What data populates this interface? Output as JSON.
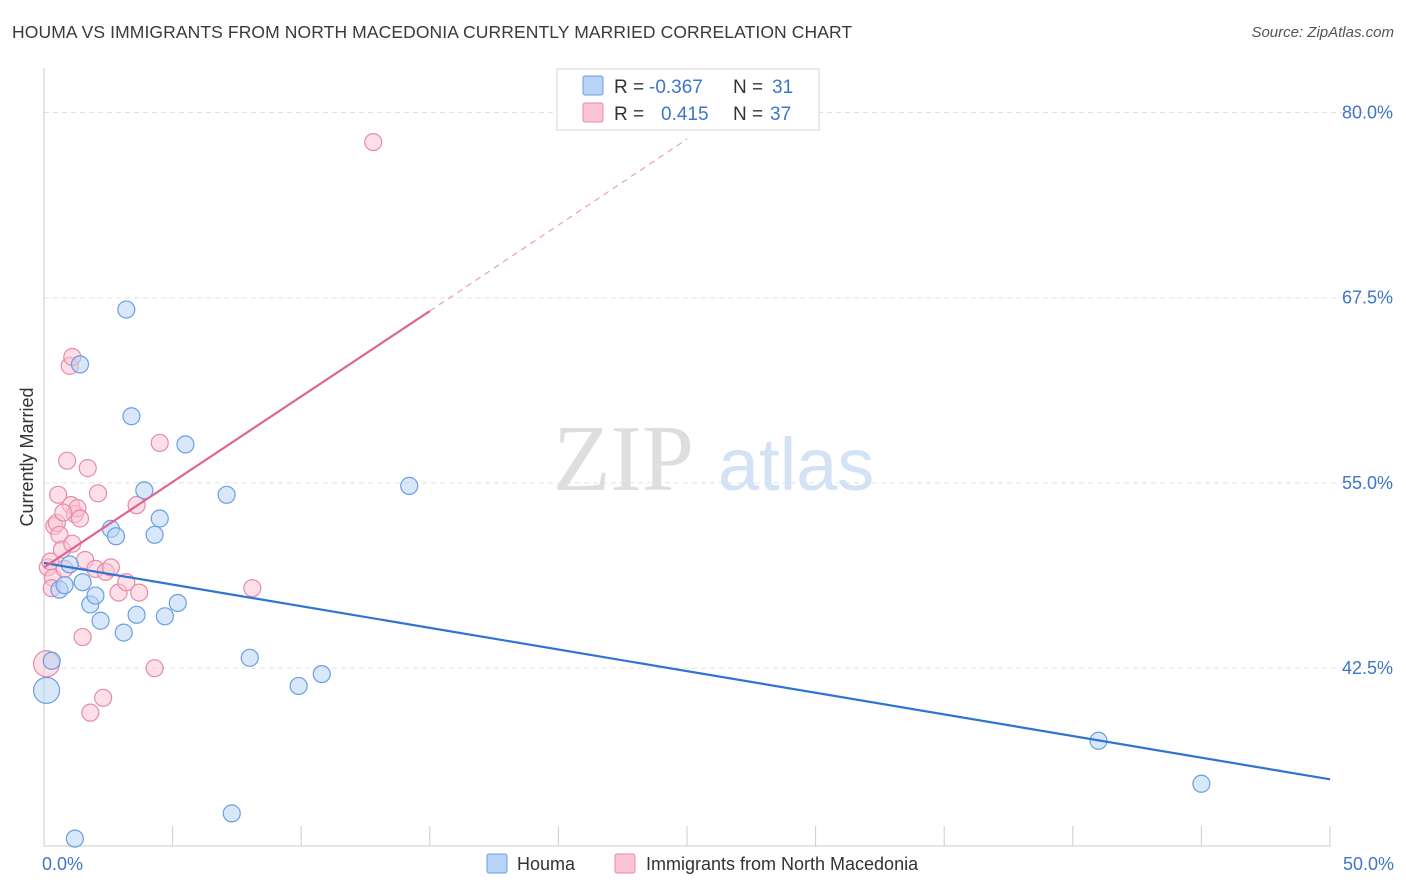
{
  "title": "HOUMA VS IMMIGRANTS FROM NORTH MACEDONIA CURRENTLY MARRIED CORRELATION CHART",
  "source": "Source: ZipAtlas.com",
  "watermark": {
    "zip": "ZIP",
    "atlas": "atlas"
  },
  "colors": {
    "blue_fill": "#b8d3f5",
    "blue_stroke": "#6a9fe0",
    "blue_line": "#2f74d0",
    "pink_fill": "#f9c4d4",
    "pink_stroke": "#e88aaa",
    "pink_line": "#e0648e",
    "axis_text": "#3d76c9",
    "grid": "#e2e2e2"
  },
  "chart_data": {
    "type": "scatter",
    "xlabel": "",
    "ylabel": "Currently Married",
    "xlim": [
      0,
      50
    ],
    "ylim": [
      30.5,
      83
    ],
    "x_tick_labels": [
      {
        "value": 0,
        "label": "0.0%"
      },
      {
        "value": 50,
        "label": "50.0%"
      }
    ],
    "x_minor_ticks": [
      0,
      5,
      10,
      15,
      20,
      25,
      30,
      35,
      40,
      45,
      50
    ],
    "y_ticks": [
      {
        "value": 42.5,
        "label": "42.5%"
      },
      {
        "value": 55.0,
        "label": "55.0%"
      },
      {
        "value": 67.5,
        "label": "67.5%"
      },
      {
        "value": 80.0,
        "label": "80.0%"
      }
    ],
    "legend": {
      "entries": [
        {
          "r_label": "R =",
          "r_value": "-0.367",
          "n_label": "N =",
          "n_value": "31"
        },
        {
          "r_label": "R =",
          "r_value": "0.415",
          "n_label": "N =",
          "n_value": "37"
        }
      ]
    },
    "series": [
      {
        "name": "Houma",
        "color": "#6a9fe0",
        "points": [
          {
            "x": 0.1,
            "y": 41.0,
            "big": true
          },
          {
            "x": 0.3,
            "y": 43.0
          },
          {
            "x": 0.6,
            "y": 47.8
          },
          {
            "x": 0.8,
            "y": 48.1
          },
          {
            "x": 1.0,
            "y": 49.5
          },
          {
            "x": 1.2,
            "y": 31.0
          },
          {
            "x": 1.4,
            "y": 63.0
          },
          {
            "x": 1.5,
            "y": 48.3
          },
          {
            "x": 1.8,
            "y": 46.8
          },
          {
            "x": 2.0,
            "y": 47.4
          },
          {
            "x": 2.2,
            "y": 45.7
          },
          {
            "x": 2.6,
            "y": 51.9
          },
          {
            "x": 2.8,
            "y": 51.4
          },
          {
            "x": 3.1,
            "y": 44.9
          },
          {
            "x": 3.2,
            "y": 66.7
          },
          {
            "x": 3.4,
            "y": 59.5
          },
          {
            "x": 3.6,
            "y": 46.1
          },
          {
            "x": 3.9,
            "y": 54.5
          },
          {
            "x": 4.3,
            "y": 51.5
          },
          {
            "x": 4.5,
            "y": 52.6
          },
          {
            "x": 4.7,
            "y": 46.0
          },
          {
            "x": 5.2,
            "y": 46.9
          },
          {
            "x": 5.5,
            "y": 57.6
          },
          {
            "x": 7.1,
            "y": 54.2
          },
          {
            "x": 7.3,
            "y": 32.7
          },
          {
            "x": 8.0,
            "y": 43.2
          },
          {
            "x": 9.9,
            "y": 41.3
          },
          {
            "x": 10.8,
            "y": 42.1
          },
          {
            "x": 14.2,
            "y": 54.8
          },
          {
            "x": 41.0,
            "y": 37.6
          },
          {
            "x": 45.0,
            "y": 34.7
          }
        ],
        "trend": {
          "x0": 0,
          "y0": 49.6,
          "x1": 50,
          "y1": 35.0
        }
      },
      {
        "name": "Immigrants from North Macedonia",
        "color": "#e88aaa",
        "points": [
          {
            "x": 0.1,
            "y": 42.8,
            "big": true
          },
          {
            "x": 0.15,
            "y": 49.3
          },
          {
            "x": 0.25,
            "y": 49.7
          },
          {
            "x": 0.35,
            "y": 48.6
          },
          {
            "x": 0.4,
            "y": 52.1
          },
          {
            "x": 0.5,
            "y": 52.3
          },
          {
            "x": 0.55,
            "y": 54.2
          },
          {
            "x": 0.6,
            "y": 51.5
          },
          {
            "x": 0.7,
            "y": 50.5
          },
          {
            "x": 0.8,
            "y": 49.2
          },
          {
            "x": 0.9,
            "y": 56.5
          },
          {
            "x": 1.0,
            "y": 62.9
          },
          {
            "x": 1.05,
            "y": 53.5
          },
          {
            "x": 1.1,
            "y": 63.5
          },
          {
            "x": 1.2,
            "y": 52.9
          },
          {
            "x": 1.3,
            "y": 53.3
          },
          {
            "x": 1.4,
            "y": 52.6
          },
          {
            "x": 1.5,
            "y": 44.6
          },
          {
            "x": 1.6,
            "y": 49.8
          },
          {
            "x": 1.7,
            "y": 56.0
          },
          {
            "x": 1.8,
            "y": 39.5
          },
          {
            "x": 2.0,
            "y": 49.2
          },
          {
            "x": 2.1,
            "y": 54.3
          },
          {
            "x": 2.3,
            "y": 40.5
          },
          {
            "x": 2.4,
            "y": 49.0
          },
          {
            "x": 2.6,
            "y": 49.3
          },
          {
            "x": 2.9,
            "y": 47.6
          },
          {
            "x": 3.2,
            "y": 48.3
          },
          {
            "x": 3.6,
            "y": 53.5
          },
          {
            "x": 3.7,
            "y": 47.6
          },
          {
            "x": 4.3,
            "y": 42.5
          },
          {
            "x": 4.5,
            "y": 57.7
          },
          {
            "x": 8.1,
            "y": 47.9
          },
          {
            "x": 12.8,
            "y": 78.0
          },
          {
            "x": 0.3,
            "y": 47.9
          },
          {
            "x": 1.1,
            "y": 50.9
          },
          {
            "x": 0.75,
            "y": 53.0
          }
        ],
        "trend": {
          "x0": 0,
          "y0": 49.3,
          "x1": 15,
          "y1": 66.6
        },
        "trend_dashed": {
          "x0": 15,
          "y0": 66.6,
          "x1": 25,
          "y1": 78.2
        }
      }
    ]
  }
}
